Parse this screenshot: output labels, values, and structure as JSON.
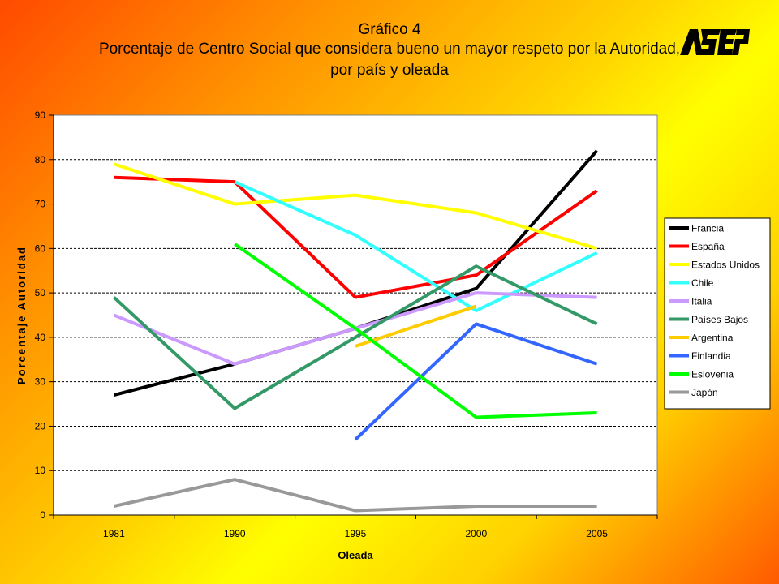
{
  "header": {
    "line1": "Gráfico 4",
    "line2": "Porcentaje de Centro Social que considera bueno un mayor respeto por la Autoridad,",
    "line3": "por país y oleada"
  },
  "logo": {
    "text": "ASEP"
  },
  "colors": {
    "Francia": "#000000",
    "España": "#ff0000",
    "Estados Unidos": "#ffff00",
    "Chile": "#33ffff",
    "Italia": "#cc99ff",
    "Países Bajos": "#339966",
    "Argentina": "#ffcc00",
    "Finlandia": "#3366ff",
    "Eslovenia": "#00ff00",
    "Japón": "#999999"
  },
  "chart_data": {
    "type": "line",
    "xlabel": "Oleada",
    "ylabel": "Porcentaje Autoridad",
    "categories": [
      "1981",
      "1990",
      "1995",
      "2000",
      "2005"
    ],
    "ylim": [
      0,
      90
    ],
    "yticks": [
      0,
      10,
      20,
      30,
      40,
      50,
      60,
      70,
      80,
      90
    ],
    "grid": true,
    "legend": "right",
    "series": [
      {
        "name": "Francia",
        "values": [
          27,
          34,
          42,
          51,
          82
        ]
      },
      {
        "name": "España",
        "values": [
          76,
          75,
          49,
          54,
          73
        ]
      },
      {
        "name": "Estados Unidos",
        "values": [
          79,
          70,
          72,
          68,
          60
        ]
      },
      {
        "name": "Chile",
        "values": [
          null,
          75,
          63,
          46,
          59
        ]
      },
      {
        "name": "Italia",
        "values": [
          45,
          34,
          42,
          50,
          49
        ]
      },
      {
        "name": "Países Bajos",
        "values": [
          49,
          24,
          40,
          56,
          43
        ]
      },
      {
        "name": "Argentina",
        "values": [
          null,
          null,
          38,
          47,
          null
        ]
      },
      {
        "name": "Finlandia",
        "values": [
          null,
          null,
          17,
          43,
          34
        ]
      },
      {
        "name": "Eslovenia",
        "values": [
          null,
          61,
          42,
          22,
          23
        ]
      },
      {
        "name": "Japón",
        "values": [
          2,
          8,
          1,
          2,
          2
        ]
      }
    ]
  }
}
